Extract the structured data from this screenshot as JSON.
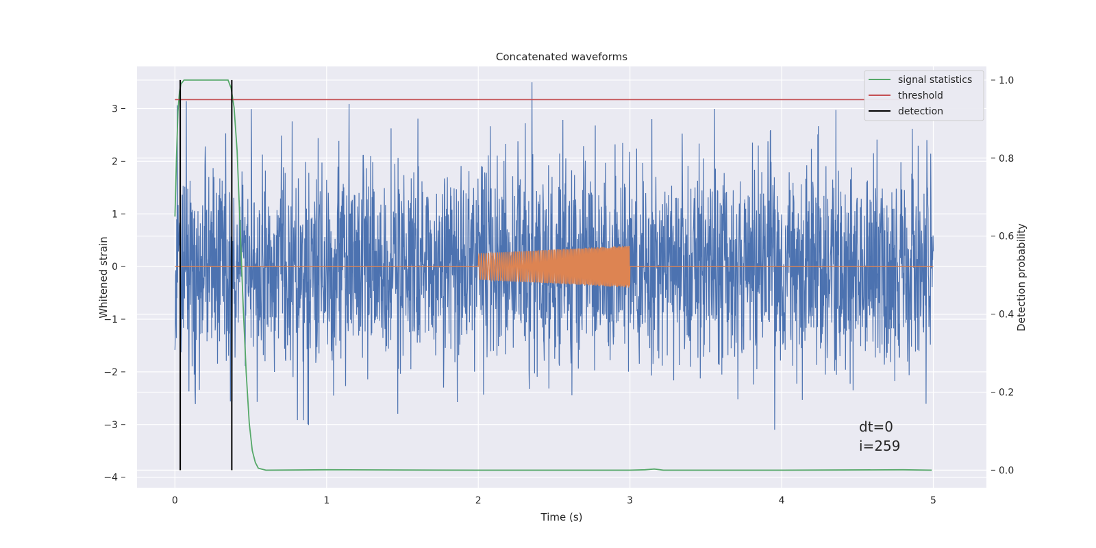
{
  "chart_data": {
    "type": "line",
    "title": "Concatenated waveforms",
    "xlabel": "Time (s)",
    "ylabel": "Whitened strain",
    "ylabel_right": "Detection probability",
    "xlim": [
      -0.25,
      5.35
    ],
    "ylim": [
      -4.2,
      3.8
    ],
    "ylim_right": [
      -0.045,
      1.035
    ],
    "x_ticks": [
      "0",
      "1",
      "2",
      "3",
      "4",
      "5"
    ],
    "y_ticks": [
      "3",
      "2",
      "1",
      "0",
      "−1",
      "−2",
      "−3",
      "−4"
    ],
    "y_right_ticks": [
      "1.0",
      "0.8",
      "0.6",
      "0.4",
      "0.2",
      "0.0"
    ],
    "grid": true,
    "legend_position": "top-right",
    "series": [
      {
        "name": "",
        "axis": "left",
        "color": "#4c72b0",
        "description_values": {
          "x_range": [
            0,
            5
          ],
          "amplitude_range": [
            -4,
            3.5
          ]
        },
        "noise_seed": 259
      },
      {
        "name": "",
        "axis": "left",
        "color": "#dd8452",
        "chirp": {
          "t_start": 2.0,
          "t_end": 3.0,
          "amp_start": 0.25,
          "amp_end": 0.4
        },
        "x": [
          0,
          2.0,
          3.0,
          5.0
        ],
        "y": [
          0,
          0,
          0,
          0
        ]
      },
      {
        "name": "signal statistics",
        "axis": "right",
        "color": "#55a868",
        "x": [
          0.0,
          0.01,
          0.02,
          0.03,
          0.04,
          0.06,
          0.08,
          0.35,
          0.37,
          0.39,
          0.41,
          0.43,
          0.45,
          0.47,
          0.49,
          0.51,
          0.53,
          0.55,
          0.6,
          1.0,
          2.0,
          3.0,
          3.1,
          3.16,
          3.22,
          3.3,
          4.0,
          4.8,
          4.99
        ],
        "y": [
          0.65,
          0.8,
          0.92,
          0.97,
          0.99,
          1.0,
          1.0,
          1.0,
          0.98,
          0.93,
          0.82,
          0.62,
          0.42,
          0.25,
          0.12,
          0.05,
          0.02,
          0.005,
          0.0,
          0.001,
          0.0,
          0.0,
          0.001,
          0.003,
          0.0,
          0.0,
          0.0,
          0.001,
          0.0
        ]
      },
      {
        "name": "threshold",
        "axis": "right",
        "color": "#c44e52",
        "x": [
          0,
          5.05
        ],
        "y": [
          0.95,
          0.95
        ]
      },
      {
        "name": "detection",
        "axis": "right",
        "color": "#000000",
        "x": [
          0.035,
          0.375
        ],
        "y_range": [
          0.0,
          1.0
        ]
      }
    ],
    "annotations": [
      "dt=0",
      "i=259"
    ]
  }
}
